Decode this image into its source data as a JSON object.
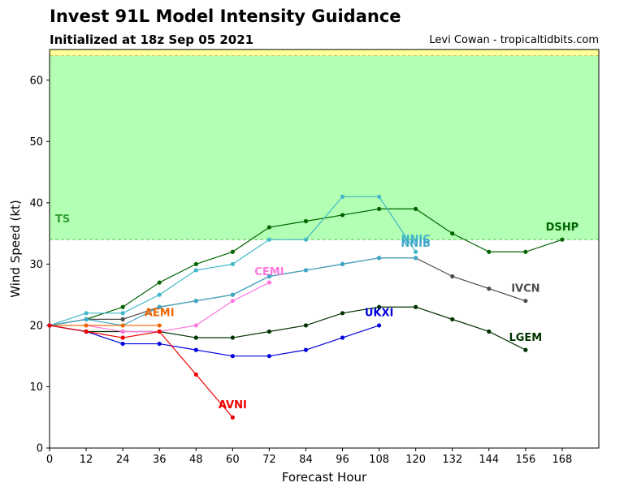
{
  "title": "Invest 91L Model Intensity Guidance",
  "subtitle": "Initialized at 18z Sep 05 2021",
  "credit": "Levi Cowan - tropicaltidbits.com",
  "chart_data": {
    "type": "line",
    "xlabel": "Forecast Hour",
    "ylabel": "Wind Speed (kt)",
    "xlim": [
      0,
      180
    ],
    "ylim": [
      0,
      65
    ],
    "x_ticks": [
      0,
      12,
      24,
      36,
      48,
      60,
      72,
      84,
      96,
      108,
      120,
      132,
      144,
      156,
      168
    ],
    "y_ticks": [
      0,
      10,
      20,
      30,
      40,
      50,
      60
    ],
    "grid": false,
    "bands": [
      {
        "label": "TS",
        "from": 34,
        "to": 64,
        "color": "#b3ffb3",
        "line_color": "#66cc66",
        "label_color": "#33a033"
      },
      {
        "label": "",
        "from": 64,
        "to": 65,
        "color": "#ffff99",
        "line_color": "#cccc66",
        "label_color": "#999900"
      }
    ],
    "series": [
      {
        "name": "DSHP",
        "color": "#006400",
        "x": [
          0,
          12,
          24,
          36,
          48,
          60,
          72,
          84,
          96,
          108,
          120,
          132,
          144,
          156,
          168
        ],
        "values": [
          20,
          21,
          23,
          27,
          30,
          32,
          36,
          37,
          38,
          39,
          39,
          35,
          32,
          32,
          34
        ]
      },
      {
        "name": "LGEM",
        "color": "#003300",
        "x": [
          0,
          12,
          24,
          36,
          48,
          60,
          72,
          84,
          96,
          108,
          120,
          132,
          144,
          156
        ],
        "values": [
          20,
          19,
          19,
          19,
          18,
          18,
          19,
          20,
          22,
          23,
          23,
          21,
          19,
          16
        ]
      },
      {
        "name": "IVCN",
        "color": "#4d4d4d",
        "x": [
          0,
          12,
          24,
          36,
          48,
          60,
          72,
          84,
          96,
          108,
          120,
          132,
          144,
          156
        ],
        "values": [
          20,
          21,
          21,
          23,
          24,
          25,
          28,
          29,
          30,
          31,
          31,
          28,
          26,
          24
        ]
      },
      {
        "name": "NNIC",
        "color": "#40b8c8",
        "x": [
          0,
          12,
          24,
          36,
          48,
          60,
          72,
          84,
          96,
          108,
          120
        ],
        "values": [
          20,
          22,
          22,
          25,
          29,
          30,
          34,
          34,
          41,
          41,
          32
        ]
      },
      {
        "name": "NNIB",
        "color": "#40a8c8",
        "x": [
          0,
          12,
          24,
          36,
          48,
          60,
          72,
          84,
          96,
          108,
          120
        ],
        "values": [
          20,
          21,
          20,
          23,
          24,
          25,
          28,
          29,
          30,
          31,
          31
        ]
      },
      {
        "name": "CEMI",
        "color": "#ff77dd",
        "x": [
          0,
          12,
          24,
          36,
          48,
          60,
          72
        ],
        "values": [
          20,
          20,
          19,
          19,
          20,
          24,
          27
        ]
      },
      {
        "name": "AEMI",
        "color": "#ee6600",
        "x": [
          0,
          12,
          24,
          36
        ],
        "values": [
          20,
          20,
          20,
          20
        ]
      },
      {
        "name": "UKXI",
        "color": "#0000dd",
        "x": [
          0,
          12,
          24,
          36,
          48,
          60,
          72,
          84,
          96,
          108
        ],
        "values": [
          20,
          19,
          17,
          17,
          16,
          15,
          15,
          16,
          18,
          20
        ]
      },
      {
        "name": "AVNI",
        "color": "#ee0000",
        "x": [
          0,
          12,
          24,
          36,
          48,
          60
        ],
        "values": [
          20,
          19,
          18,
          19,
          12,
          5
        ]
      }
    ],
    "labels": [
      {
        "text": "DSHP",
        "series": "DSHP",
        "x": 168,
        "y": 35.5
      },
      {
        "text": "LGEM",
        "series": "LGEM",
        "x": 156,
        "y": 17.5
      },
      {
        "text": "IVCN",
        "series": "IVCN",
        "x": 156,
        "y": 25.5
      },
      {
        "text": "NNIC",
        "series": "NNIC",
        "x": 120,
        "y": 33.5
      },
      {
        "text": "NNIB",
        "series": "NNIB",
        "x": 120,
        "y": 32.8
      },
      {
        "text": "CEMI",
        "series": "CEMI",
        "x": 72,
        "y": 28.2
      },
      {
        "text": "AEMI",
        "series": "AEMI",
        "x": 36,
        "y": 21.5
      },
      {
        "text": "UKXI",
        "series": "UKXI",
        "x": 108,
        "y": 21.5
      },
      {
        "text": "AVNI",
        "series": "AVNI",
        "x": 60,
        "y": 6.5
      }
    ]
  }
}
